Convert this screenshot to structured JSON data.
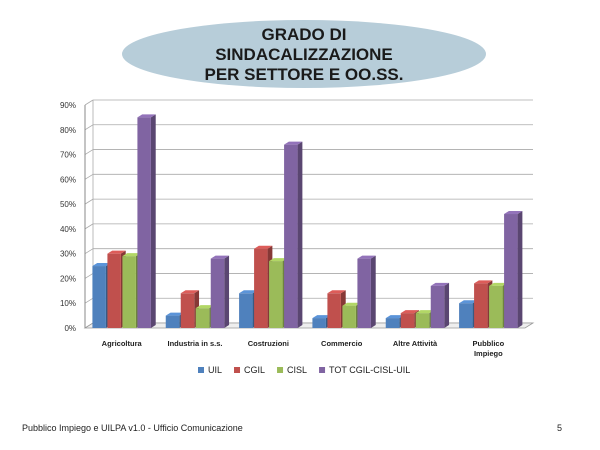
{
  "title_lines": [
    "GRADO DI",
    "SINDACALIZZAZIONE",
    "PER SETTORE E OO.SS."
  ],
  "footer": "Pubblico Impiego e UILPA v1.0 - Ufficio Comunicazione",
  "page_number": "5",
  "chart_data": {
    "type": "bar",
    "title": "GRADO DI SINDACALIZZAZIONE PER SETTORE E OO.SS.",
    "categories": [
      "Agricoltura",
      "Industria in s.s.",
      "Costruzioni",
      "Commercio",
      "Altre Attività",
      "Pubblico\nImpiego"
    ],
    "series": [
      {
        "name": "UIL",
        "color": "#4f81bd",
        "values": [
          25,
          5,
          14,
          4,
          4,
          10
        ]
      },
      {
        "name": "CGIL",
        "color": "#c0504d",
        "values": [
          30,
          14,
          32,
          14,
          6,
          18
        ]
      },
      {
        "name": "CISL",
        "color": "#9bbb59",
        "values": [
          29,
          8,
          27,
          9,
          6,
          17
        ]
      },
      {
        "name": "TOT CGIL-CISL-UIL",
        "color": "#8064a2",
        "values": [
          85,
          28,
          74,
          28,
          17,
          46
        ]
      }
    ],
    "yticks": [
      "0%",
      "10%",
      "20%",
      "30%",
      "40%",
      "50%",
      "60%",
      "70%",
      "80%",
      "90%"
    ],
    "ylim": [
      0,
      90
    ],
    "grid": true,
    "legend_position": "bottom"
  }
}
